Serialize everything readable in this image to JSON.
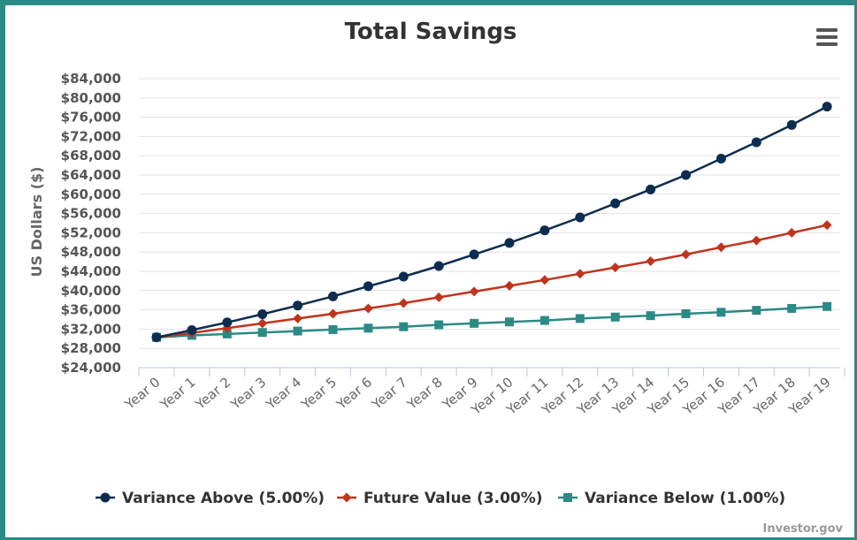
{
  "chart_data": {
    "type": "line",
    "title": "Total Savings",
    "ylabel": "US Dollars ($)",
    "xlabel": "",
    "ylim": [
      24000,
      84000
    ],
    "ytick_step": 4000,
    "categories": [
      "Year 0",
      "Year 1",
      "Year 2",
      "Year 3",
      "Year 4",
      "Year 5",
      "Year 6",
      "Year 7",
      "Year 8",
      "Year 9",
      "Year 10",
      "Year 11",
      "Year 12",
      "Year 13",
      "Year 14",
      "Year 15",
      "Year 16",
      "Year 17",
      "Year 18",
      "Year 19"
    ],
    "yticks": [
      "$24,000",
      "$28,000",
      "$32,000",
      "$36,000",
      "$40,000",
      "$44,000",
      "$48,000",
      "$52,000",
      "$56,000",
      "$60,000",
      "$64,000",
      "$68,000",
      "$72,000",
      "$76,000",
      "$80,000",
      "$84,000"
    ],
    "grid": true,
    "legend_position": "bottom",
    "series": [
      {
        "name": "Variance Above (5.00%)",
        "color": "#0c2d4f",
        "marker": "circle",
        "values": [
          30300,
          31800,
          33400,
          35100,
          36900,
          38800,
          40900,
          42900,
          45100,
          47500,
          49900,
          52500,
          55200,
          58100,
          61000,
          64000,
          67400,
          70800,
          74400,
          78200
        ]
      },
      {
        "name": "Future Value (3.00%)",
        "color": "#c0341d",
        "marker": "diamond",
        "values": [
          30300,
          31200,
          32200,
          33200,
          34200,
          35200,
          36300,
          37400,
          38600,
          39800,
          41000,
          42200,
          43500,
          44800,
          46100,
          47500,
          49000,
          50400,
          52000,
          53600
        ]
      },
      {
        "name": "Variance Below (1.00%)",
        "color": "#2b8a86",
        "marker": "square",
        "values": [
          30300,
          30700,
          31000,
          31300,
          31600,
          31900,
          32200,
          32500,
          32900,
          33200,
          33500,
          33800,
          34200,
          34500,
          34800,
          35200,
          35500,
          35900,
          36300,
          36700
        ]
      }
    ]
  },
  "menu": {
    "icon": "hamburger-menu-icon"
  },
  "credit": "Investor.gov"
}
